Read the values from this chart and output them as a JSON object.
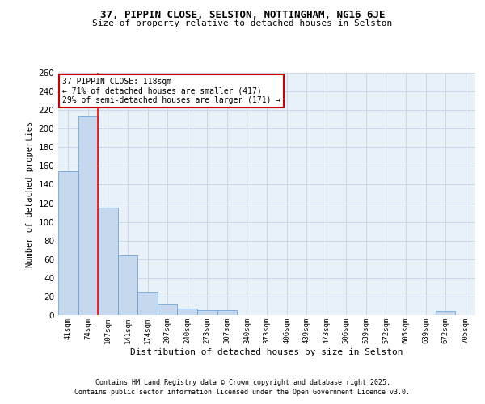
{
  "title1": "37, PIPPIN CLOSE, SELSTON, NOTTINGHAM, NG16 6JE",
  "title2": "Size of property relative to detached houses in Selston",
  "xlabel": "Distribution of detached houses by size in Selston",
  "ylabel": "Number of detached properties",
  "categories": [
    "41sqm",
    "74sqm",
    "107sqm",
    "141sqm",
    "174sqm",
    "207sqm",
    "240sqm",
    "273sqm",
    "307sqm",
    "340sqm",
    "373sqm",
    "406sqm",
    "439sqm",
    "473sqm",
    "506sqm",
    "539sqm",
    "572sqm",
    "605sqm",
    "639sqm",
    "672sqm",
    "705sqm"
  ],
  "values": [
    154,
    213,
    115,
    64,
    24,
    12,
    7,
    5,
    5,
    0,
    0,
    0,
    0,
    0,
    0,
    0,
    0,
    0,
    0,
    4,
    0
  ],
  "bar_color": "#c5d8ed",
  "bar_edge_color": "#5b9bd5",
  "grid_color": "#c8d8e8",
  "bg_color": "#e8f0f8",
  "red_line_index": 2,
  "annotation_text": "37 PIPPIN CLOSE: 118sqm\n← 71% of detached houses are smaller (417)\n29% of semi-detached houses are larger (171) →",
  "annotation_box_color": "#ffffff",
  "annotation_border_color": "#cc0000",
  "ylim": [
    0,
    260
  ],
  "yticks": [
    0,
    20,
    40,
    60,
    80,
    100,
    120,
    140,
    160,
    180,
    200,
    220,
    240,
    260
  ],
  "footer1": "Contains HM Land Registry data © Crown copyright and database right 2025.",
  "footer2": "Contains public sector information licensed under the Open Government Licence v3.0."
}
